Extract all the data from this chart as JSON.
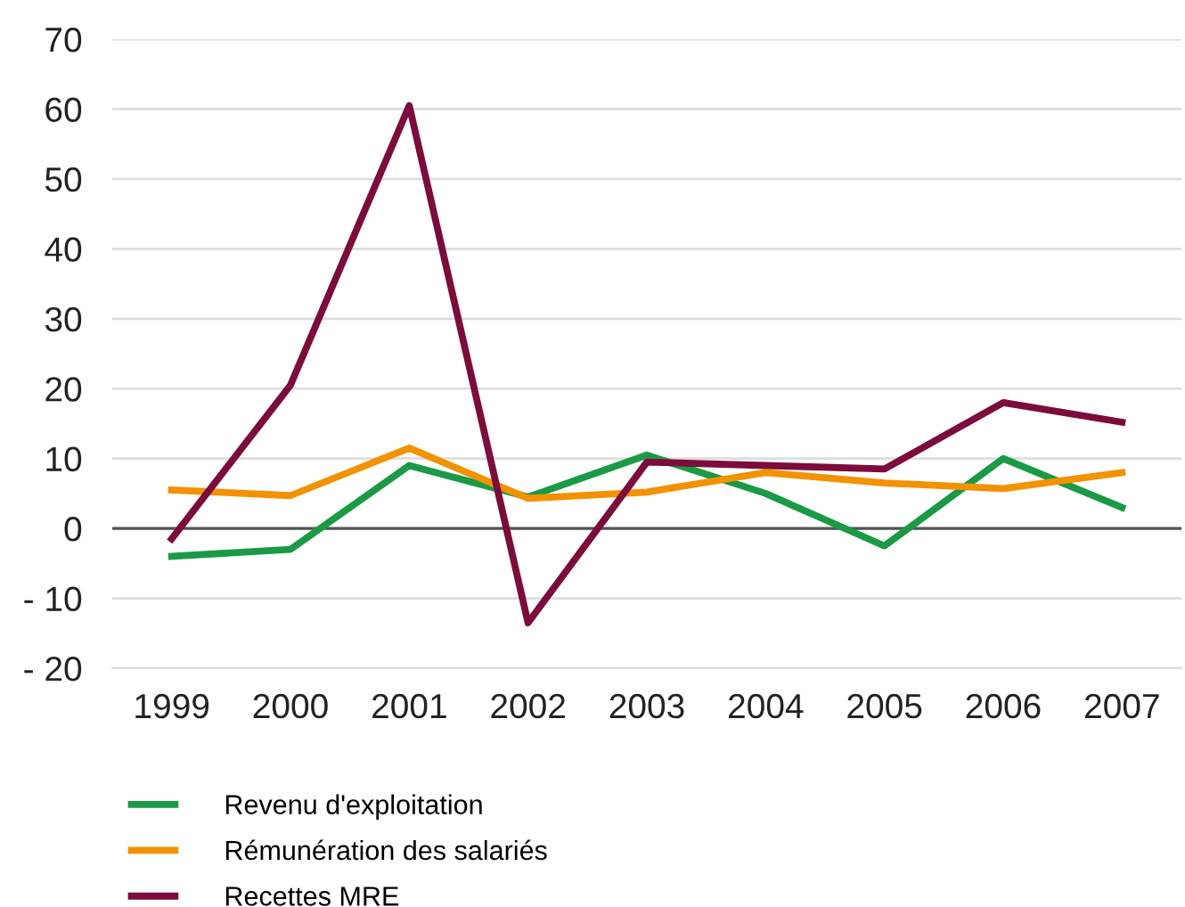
{
  "chart_data": {
    "type": "line",
    "categories": [
      "1999",
      "2000",
      "2001",
      "2002",
      "2003",
      "2004",
      "2005",
      "2006",
      "2007"
    ],
    "series": [
      {
        "name": "Revenu d'exploitation",
        "color": "#1a9a45",
        "values": [
          -4,
          -3,
          9,
          4.5,
          10.5,
          5,
          -2.5,
          10,
          3
        ]
      },
      {
        "name": "Rémunération des salariés",
        "color": "#f39200",
        "values": [
          5.5,
          4.7,
          11.5,
          4.3,
          5.2,
          8,
          6.5,
          5.7,
          8
        ]
      },
      {
        "name": "Recettes MRE",
        "color": "#7b0c3c",
        "values": [
          -1.5,
          20.5,
          60.5,
          -13.5,
          9.5,
          9,
          8.5,
          18,
          15.2
        ]
      }
    ],
    "ylim": [
      -20,
      70
    ],
    "yticks": [
      {
        "value": -20,
        "label": "- 20"
      },
      {
        "value": -10,
        "label": "- 10"
      },
      0,
      10,
      20,
      30,
      40,
      50,
      60,
      70
    ],
    "ref_lines": [
      {
        "axis": "y",
        "value": 0,
        "color": "#555555"
      }
    ],
    "grid": "y",
    "legend": "bottom",
    "marker": "none",
    "line_style": "solid"
  }
}
